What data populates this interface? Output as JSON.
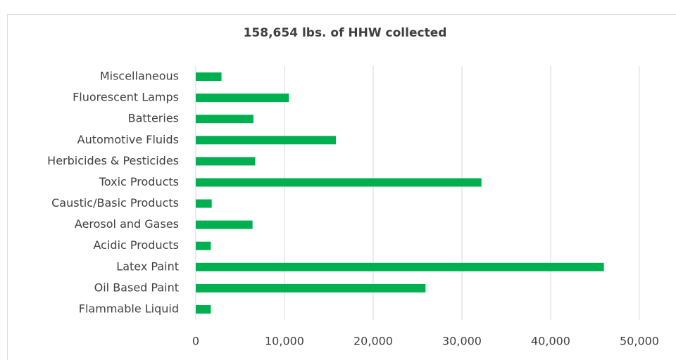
{
  "chart_data": {
    "type": "bar",
    "orientation": "horizontal",
    "title": "158,654 lbs. of HHW collected",
    "categories": [
      "Miscellaneous",
      "Fluorescent Lamps",
      "Batteries",
      "Automotive Fluids",
      "Herbicides & Pesticides",
      "Toxic Products",
      "Caustic/Basic Products",
      "Aerosol and Gases",
      "Acidic Products",
      "Latex Paint",
      "Oil Based Paint",
      "Flammable Liquid"
    ],
    "values": [
      2900,
      10500,
      6500,
      15800,
      6700,
      32200,
      1800,
      6400,
      1700,
      46000,
      25900,
      1700
    ],
    "color": "#00b050",
    "xlim": [
      0,
      50000
    ],
    "xticks": [
      0,
      {
        "value": 10000,
        "label": "10,000"
      },
      {
        "value": 20000,
        "label": "20,000"
      },
      {
        "value": 30000,
        "label": "30,000"
      },
      {
        "value": 40000,
        "label": "40,000"
      },
      {
        "value": 50000,
        "label": "50,000"
      }
    ],
    "grid": true
  }
}
